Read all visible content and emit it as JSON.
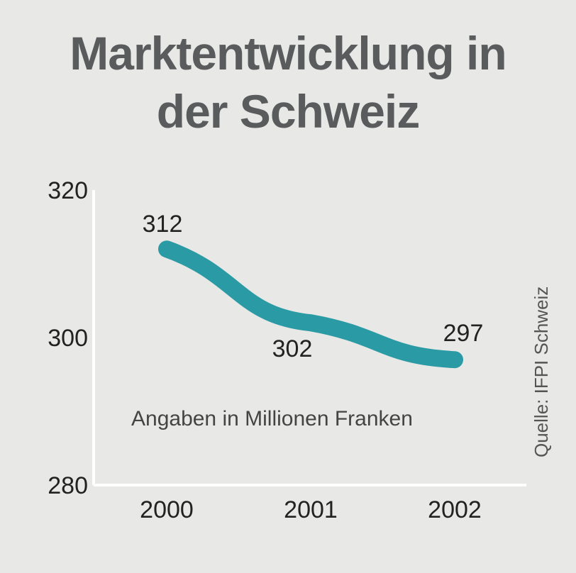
{
  "title_line1": "Marktentwicklung in",
  "title_line2": "der Schweiz",
  "note": "Angaben in Millionen Franken",
  "source": "Quelle: IFPI Schweiz",
  "colors": {
    "line": "#2a9ba5",
    "axis": "#ffffff",
    "title": "#5a5b5d",
    "background": "#e8e8e6"
  },
  "chart_data": {
    "type": "line",
    "title": "Marktentwicklung in der Schweiz",
    "categories": [
      "2000",
      "2001",
      "2002"
    ],
    "series": [
      {
        "values": [
          312,
          302,
          297
        ]
      }
    ],
    "data_labels": [
      "312",
      "302",
      "297"
    ],
    "y_ticks": [
      320,
      300,
      280
    ],
    "y_tick_labels": [
      "320",
      "300",
      "280"
    ],
    "ylim": [
      280,
      320
    ],
    "annotation": "Angaben in Millionen Franken",
    "grid": false
  }
}
